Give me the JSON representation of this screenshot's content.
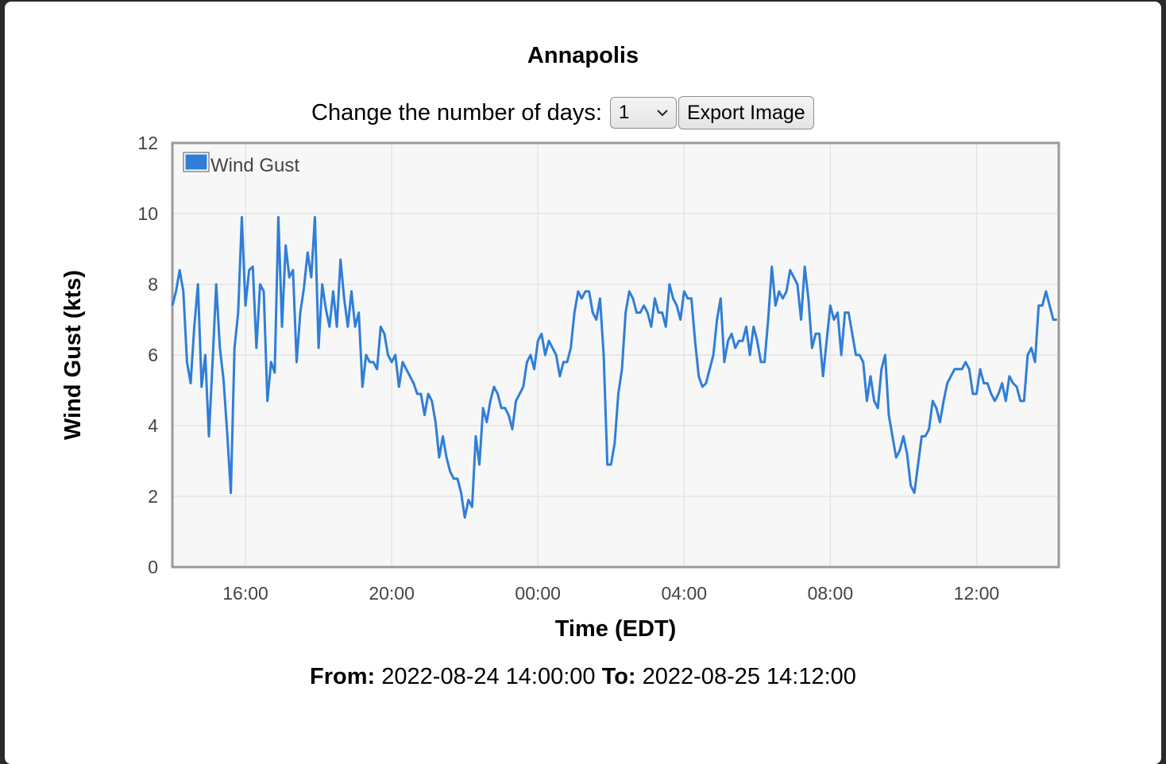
{
  "header": {
    "title": "Annapolis"
  },
  "controls": {
    "days_label": "Change the number of days:",
    "days_value": "1",
    "export_button": "Export Image"
  },
  "chart_data": {
    "type": "line",
    "x_label": "Time (EDT)",
    "y_label": "Wind Gust (kts)",
    "x": [
      14,
      14.1,
      14.2,
      14.3,
      14.4,
      14.5,
      14.6,
      14.7,
      14.8,
      14.9,
      15,
      15.1,
      15.2,
      15.3,
      15.4,
      15.5,
      15.6,
      15.7,
      15.8,
      15.9,
      16,
      16.1,
      16.2,
      16.3,
      16.4,
      16.5,
      16.6,
      16.7,
      16.8,
      16.9,
      17,
      17.1,
      17.2,
      17.3,
      17.4,
      17.5,
      17.6,
      17.7,
      17.8,
      17.9,
      18,
      18.1,
      18.2,
      18.3,
      18.4,
      18.5,
      18.6,
      18.7,
      18.8,
      18.9,
      19,
      19.1,
      19.2,
      19.3,
      19.4,
      19.5,
      19.6,
      19.7,
      19.8,
      19.9,
      20,
      20.1,
      20.2,
      20.3,
      20.4,
      20.5,
      20.6,
      20.7,
      20.8,
      20.9,
      21,
      21.1,
      21.2,
      21.3,
      21.4,
      21.5,
      21.6,
      21.7,
      21.8,
      21.9,
      22,
      22.1,
      22.2,
      22.3,
      22.4,
      22.5,
      22.6,
      22.7,
      22.8,
      22.9,
      23,
      23.1,
      23.2,
      23.3,
      23.4,
      23.5,
      23.6,
      23.7,
      23.8,
      23.9,
      24,
      24.1,
      24.2,
      24.3,
      24.4,
      24.5,
      24.6,
      24.7,
      24.8,
      24.9,
      25,
      25.1,
      25.2,
      25.3,
      25.4,
      25.5,
      25.6,
      25.7,
      25.8,
      25.9,
      26,
      26.1,
      26.2,
      26.3,
      26.4,
      26.5,
      26.6,
      26.7,
      26.8,
      26.9,
      27,
      27.1,
      27.2,
      27.3,
      27.4,
      27.5,
      27.6,
      27.7,
      27.8,
      27.9,
      28,
      28.1,
      28.2,
      28.3,
      28.4,
      28.5,
      28.6,
      28.7,
      28.8,
      28.9,
      29,
      29.1,
      29.2,
      29.3,
      29.4,
      29.5,
      29.6,
      29.7,
      29.8,
      29.9,
      30,
      30.1,
      30.2,
      30.3,
      30.4,
      30.5,
      30.6,
      30.7,
      30.8,
      30.9,
      31,
      31.1,
      31.2,
      31.3,
      31.4,
      31.5,
      31.6,
      31.7,
      31.8,
      31.9,
      32,
      32.1,
      32.2,
      32.3,
      32.4,
      32.5,
      32.6,
      32.7,
      32.8,
      32.9,
      33,
      33.1,
      33.2,
      33.3,
      33.4,
      33.5,
      33.6,
      33.7,
      33.8,
      33.9,
      34,
      34.1,
      34.2,
      34.3,
      34.4,
      34.5,
      34.6,
      34.7,
      34.8,
      34.9,
      35,
      35.1,
      35.2,
      35.3,
      35.4,
      35.5,
      35.6,
      35.7,
      35.8,
      35.9,
      36,
      36.1,
      36.2,
      36.3,
      36.4,
      36.5,
      36.6,
      36.7,
      36.8,
      36.9,
      37,
      37.1,
      37.2,
      37.3,
      37.4,
      37.5,
      37.6,
      37.7,
      37.8,
      37.9,
      38,
      38.1,
      38.2
    ],
    "series": [
      {
        "name": "Wind Gust",
        "color": "#2f7ed8",
        "values": [
          7.4,
          7.8,
          8.4,
          7.8,
          5.8,
          5.2,
          6.8,
          8.0,
          5.1,
          6.0,
          3.7,
          5.8,
          8.0,
          6.2,
          5.3,
          3.8,
          2.1,
          6.2,
          7.2,
          9.9,
          7.4,
          8.4,
          8.5,
          6.2,
          8.0,
          7.8,
          4.7,
          5.8,
          5.5,
          9.9,
          6.8,
          9.1,
          8.2,
          8.4,
          5.8,
          7.2,
          7.9,
          8.9,
          8.2,
          9.9,
          6.2,
          8.0,
          7.3,
          6.8,
          7.8,
          6.8,
          8.7,
          7.6,
          6.8,
          7.8,
          6.8,
          7.2,
          5.1,
          6.0,
          5.8,
          5.8,
          5.6,
          6.8,
          6.6,
          6.0,
          5.8,
          6.0,
          5.1,
          5.8,
          5.6,
          5.4,
          5.2,
          4.9,
          4.9,
          4.3,
          4.9,
          4.7,
          4.1,
          3.1,
          3.7,
          3.1,
          2.7,
          2.5,
          2.5,
          2.1,
          1.4,
          1.9,
          1.7,
          3.7,
          2.9,
          4.5,
          4.1,
          4.7,
          5.1,
          4.9,
          4.5,
          4.5,
          4.3,
          3.9,
          4.7,
          4.9,
          5.1,
          5.8,
          6.0,
          5.6,
          6.4,
          6.6,
          6.0,
          6.4,
          6.2,
          6.0,
          5.4,
          5.8,
          5.8,
          6.2,
          7.2,
          7.8,
          7.6,
          7.8,
          7.8,
          7.2,
          7.0,
          7.6,
          6.0,
          2.9,
          2.9,
          3.5,
          4.9,
          5.6,
          7.2,
          7.8,
          7.6,
          7.2,
          7.2,
          7.4,
          7.2,
          6.8,
          7.6,
          7.2,
          7.2,
          6.8,
          8.0,
          7.6,
          7.4,
          7.0,
          7.8,
          7.6,
          7.6,
          6.4,
          5.4,
          5.1,
          5.2,
          5.6,
          6.0,
          7.0,
          7.6,
          5.8,
          6.4,
          6.6,
          6.2,
          6.4,
          6.4,
          6.8,
          6.0,
          6.8,
          6.4,
          5.8,
          5.8,
          7.0,
          8.5,
          7.4,
          7.8,
          7.6,
          7.8,
          8.4,
          8.2,
          8.0,
          7.0,
          8.5,
          7.6,
          6.2,
          6.6,
          6.6,
          5.4,
          6.4,
          7.4,
          7.0,
          7.2,
          6.0,
          7.2,
          7.2,
          6.6,
          6.0,
          6.0,
          5.8,
          4.7,
          5.4,
          4.7,
          4.5,
          5.6,
          6.0,
          4.3,
          3.7,
          3.1,
          3.3,
          3.7,
          3.2,
          2.3,
          2.1,
          2.9,
          3.7,
          3.7,
          3.9,
          4.7,
          4.5,
          4.1,
          4.7,
          5.2,
          5.4,
          5.6,
          5.6,
          5.6,
          5.8,
          5.6,
          4.9,
          4.9,
          5.6,
          5.2,
          5.2,
          4.9,
          4.7,
          4.9,
          5.2,
          4.7,
          5.4,
          5.2,
          5.1,
          4.7,
          4.7,
          6.0,
          6.2,
          5.8,
          7.4,
          7.4,
          7.8,
          7.4,
          7.0,
          7.0
        ]
      }
    ],
    "xlim": [
      14,
      38.25
    ],
    "xticks": [
      {
        "value": 16,
        "label": "16:00"
      },
      {
        "value": 20,
        "label": "20:00"
      },
      {
        "value": 24,
        "label": "00:00"
      },
      {
        "value": 28,
        "label": "04:00"
      },
      {
        "value": 32,
        "label": "08:00"
      },
      {
        "value": 36,
        "label": "12:00"
      }
    ],
    "ylim": [
      0,
      12
    ],
    "yticks": [
      0,
      2,
      4,
      6,
      8,
      10,
      12
    ],
    "grid": true,
    "legend": "top-left"
  },
  "footer": {
    "from_label": "From:",
    "from_value": "2022-08-24 14:00:00",
    "to_label": "To:",
    "to_value": "2022-08-25 14:12:00"
  }
}
